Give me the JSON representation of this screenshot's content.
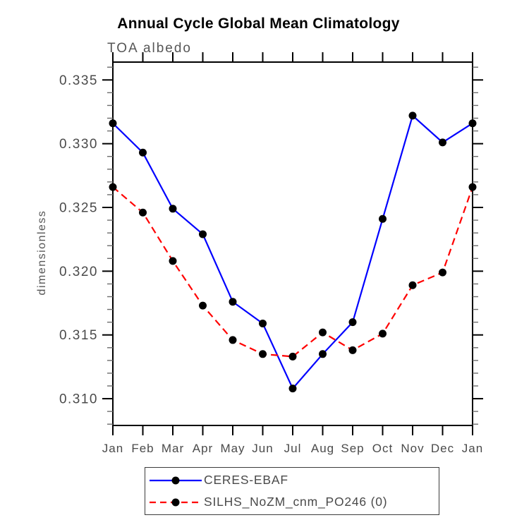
{
  "page": {
    "background": "#ffffff",
    "axis_color": "#000000",
    "tick_label_color": "#4a4a4a",
    "subtitle_color": "#565656"
  },
  "chart_data": {
    "type": "line",
    "title": "Annual Cycle Global Mean Climatology",
    "subtitle": "TOA albedo",
    "ylabel": "dimensionless",
    "xlabel": "",
    "categories": [
      "Jan",
      "Feb",
      "Mar",
      "Apr",
      "May",
      "Jun",
      "Jul",
      "Aug",
      "Sep",
      "Oct",
      "Nov",
      "Dec",
      "Jan"
    ],
    "series": [
      {
        "name": "CERES-EBAF",
        "color": "#0000ff",
        "style": "solid",
        "marker": "circle",
        "marker_color": "#000000",
        "values": [
          0.3316,
          0.3293,
          0.3249,
          0.3229,
          0.3176,
          0.3159,
          0.3108,
          0.3135,
          0.316,
          0.3241,
          0.3322,
          0.3301,
          0.3316
        ]
      },
      {
        "name": "SILHS_NoZM_cnm_PO246 (0)",
        "color": "#ff0000",
        "style": "dashed",
        "marker": "circle",
        "marker_color": "#000000",
        "values": [
          0.3266,
          0.3246,
          0.3208,
          0.3173,
          0.3146,
          0.3135,
          0.3133,
          0.3152,
          0.3138,
          0.3151,
          0.3189,
          0.3199,
          0.3266
        ]
      }
    ],
    "ylim": [
      0.3079,
      0.3364
    ],
    "yticks": [
      0.31,
      0.315,
      0.32,
      0.325,
      0.33,
      0.335
    ],
    "ytick_format_decimals": 3,
    "minor_tick_step": 0.001,
    "grid": false,
    "legend_position": "bottom",
    "frame": "box"
  }
}
